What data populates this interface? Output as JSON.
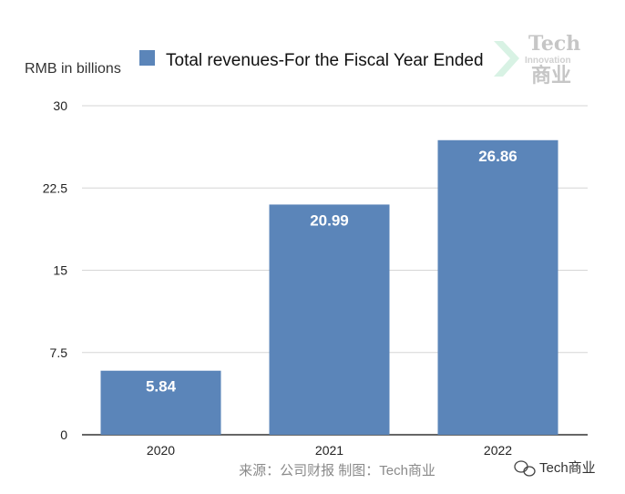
{
  "chart_data": {
    "type": "bar",
    "categories": [
      "2020",
      "2021",
      "2022"
    ],
    "series": [
      {
        "name": "Total revenues-For the Fiscal Year Ended",
        "values": [
          5.84,
          20.99,
          26.86
        ]
      }
    ],
    "data_labels": [
      "5.84",
      "20.99",
      "26.86"
    ],
    "ylabel": "RMB in billions",
    "xlabel": "",
    "ylim": [
      0,
      30
    ],
    "yticks": [
      "0",
      "7.5",
      "15",
      "22.5",
      "30"
    ],
    "grid": true,
    "legend_position": "top-center",
    "bar_color": "#5b85b9"
  },
  "source_text": "来源：公司财报 制图：Tech商业",
  "watermark": {
    "logo_top": "Tech",
    "logo_middle": "Innovation",
    "logo_bottom": "商业",
    "footer_text": "Tech商业"
  }
}
